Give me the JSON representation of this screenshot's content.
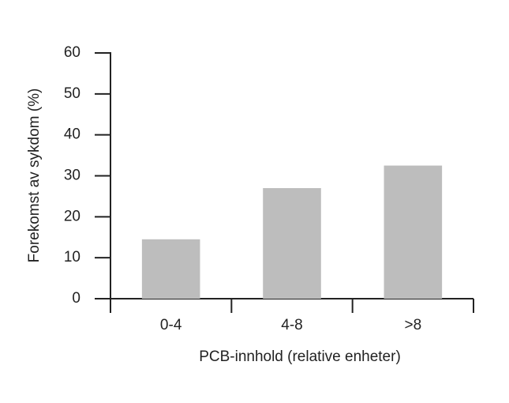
{
  "chart_data": {
    "type": "bar",
    "x_label": "PCB-innhold (relative enheter)",
    "y_label": "Forekomst av sykdom (%)",
    "categories": [
      "0-4",
      "4-8",
      ">8"
    ],
    "values": [
      14.5,
      27,
      32.5
    ],
    "color": "#bdbdbd",
    "ylim": [
      0,
      60
    ],
    "yticks": [
      0,
      10,
      20,
      30,
      40,
      50,
      60
    ],
    "grid": false
  }
}
